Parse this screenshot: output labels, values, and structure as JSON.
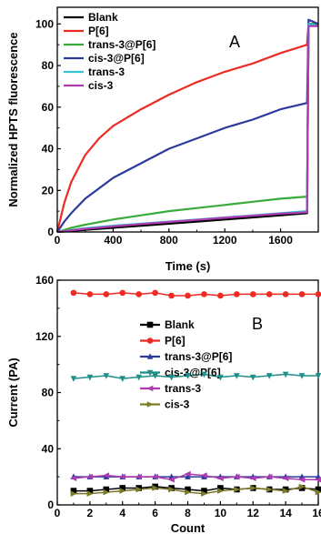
{
  "chart_data": [
    {
      "type": "line",
      "panel_label": "A",
      "xlabel": "Time (s)",
      "ylabel": "Normalized HPTS fluorescence",
      "xlim": [
        0,
        1870
      ],
      "ylim": [
        0,
        108
      ],
      "xticks": [
        0,
        400,
        800,
        1200,
        1600
      ],
      "yticks": [
        0,
        20,
        40,
        60,
        80,
        100
      ],
      "legend_position": "top-left",
      "grid": false,
      "series": [
        {
          "name": "Blank",
          "color": "#000000",
          "x": [
            0,
            100,
            200,
            400,
            600,
            800,
            1000,
            1200,
            1400,
            1600,
            1790,
            1800,
            1870
          ],
          "y": [
            0,
            0.5,
            1,
            2,
            3,
            4,
            5,
            6,
            7,
            8,
            9,
            100,
            100
          ]
        },
        {
          "name": "P[6]",
          "color": "#ee2a24",
          "x": [
            0,
            50,
            100,
            200,
            300,
            400,
            600,
            800,
            1000,
            1200,
            1400,
            1600,
            1790,
            1800,
            1870
          ],
          "y": [
            0,
            14,
            24,
            37,
            45,
            51,
            59,
            66,
            72,
            77,
            81,
            86,
            90,
            100,
            100
          ]
        },
        {
          "name": "trans-3@P[6]",
          "color": "#3aab3a",
          "x": [
            0,
            100,
            200,
            400,
            600,
            800,
            1000,
            1200,
            1400,
            1600,
            1790,
            1800,
            1870
          ],
          "y": [
            0,
            2,
            3.5,
            6,
            8,
            10,
            11.5,
            13,
            14.5,
            16,
            17,
            100,
            100
          ]
        },
        {
          "name": "cis-3@P[6]",
          "color": "#2b3a9c",
          "x": [
            0,
            50,
            100,
            200,
            300,
            400,
            600,
            800,
            1000,
            1200,
            1400,
            1600,
            1790,
            1800,
            1870
          ],
          "y": [
            0,
            5,
            9,
            16,
            21,
            26,
            33,
            40,
            45,
            50,
            54,
            59,
            62,
            102,
            100
          ]
        },
        {
          "name": "trans-3",
          "color": "#33c6d0",
          "x": [
            0,
            100,
            200,
            400,
            600,
            800,
            1000,
            1200,
            1400,
            1600,
            1790,
            1800,
            1870
          ],
          "y": [
            0,
            1,
            1.8,
            3,
            4,
            5,
            6,
            7,
            8,
            9,
            10,
            100,
            99
          ]
        },
        {
          "name": "cis-3",
          "color": "#b03ab0",
          "x": [
            0,
            100,
            200,
            400,
            600,
            800,
            1000,
            1200,
            1400,
            1600,
            1790,
            1800,
            1870
          ],
          "y": [
            0,
            0.8,
            1.5,
            2.7,
            3.8,
            4.8,
            5.8,
            6.8,
            7.8,
            8.8,
            9.5,
            99,
            99
          ]
        }
      ]
    },
    {
      "type": "line",
      "panel_label": "B",
      "xlabel": "Count",
      "ylabel": "Current (PA)",
      "xlim": [
        0,
        16
      ],
      "ylim": [
        0,
        160
      ],
      "xticks": [
        0,
        2,
        4,
        6,
        8,
        10,
        12,
        14,
        16
      ],
      "yticks": [
        0,
        40,
        80,
        120,
        160
      ],
      "legend_position": "center",
      "grid": false,
      "x": [
        1,
        2,
        3,
        4,
        5,
        6,
        7,
        8,
        9,
        10,
        11,
        12,
        13,
        14,
        15,
        16
      ],
      "series": [
        {
          "name": "Blank",
          "color": "#000000",
          "marker": "square",
          "values": [
            10,
            10,
            11,
            12,
            12,
            13,
            12,
            11,
            10,
            12,
            11,
            12,
            11,
            11,
            12,
            11
          ]
        },
        {
          "name": "P[6]",
          "color": "#ee2a24",
          "marker": "circle",
          "values": [
            151,
            150,
            150,
            151,
            150,
            151,
            149,
            149,
            150,
            149,
            150,
            150,
            150,
            150,
            150,
            150
          ]
        },
        {
          "name": "trans-3@P[6]",
          "color": "#2b3a9c",
          "marker": "triangle-up",
          "values": [
            20,
            20,
            20,
            20,
            20,
            20,
            20,
            20,
            20,
            20,
            20,
            20,
            20,
            20,
            20,
            20
          ]
        },
        {
          "name": "cis-3@P[6]",
          "color": "#1f8f8a",
          "marker": "triangle-down",
          "values": [
            90,
            91,
            92,
            90,
            91,
            92,
            91,
            92,
            93,
            91,
            92,
            91,
            92,
            93,
            92,
            92
          ]
        },
        {
          "name": "trans-3",
          "color": "#b03ab0",
          "marker": "triangle-left",
          "values": [
            19,
            20,
            21,
            20,
            20,
            20,
            18,
            22,
            21,
            19,
            20,
            19,
            20,
            19,
            18,
            18
          ]
        },
        {
          "name": "cis-3",
          "color": "#7d7a28",
          "marker": "triangle-right",
          "values": [
            8,
            8,
            9,
            10,
            11,
            12,
            11,
            9,
            8,
            10,
            11,
            12,
            11,
            10,
            13,
            9
          ]
        }
      ]
    }
  ]
}
